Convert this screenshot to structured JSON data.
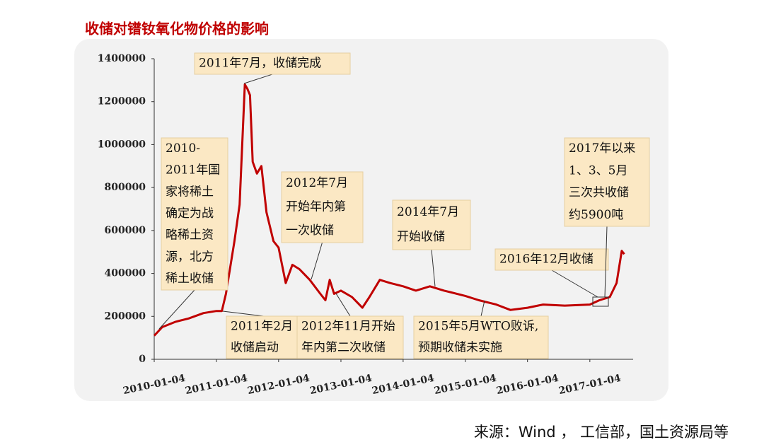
{
  "chart_data": {
    "type": "line",
    "title": "收储对镨钕氧化物价格的影响",
    "source": "来源：Wind ， 工信部，国土资源局等",
    "xlim": [
      "2010-01-04",
      "2017-09-15"
    ],
    "xticks": [
      "2010-01-04",
      "2011-01-04",
      "2012-01-04",
      "2013-01-04",
      "2014-01-04",
      "2015-01-04",
      "2016-01-04",
      "2017-01-04"
    ],
    "ylim": [
      0,
      1400000
    ],
    "yticks": [
      0,
      200000,
      400000,
      600000,
      800000,
      1000000,
      1200000,
      1400000
    ],
    "series": [
      {
        "color": "#c00000",
        "x": [
          "2010-01-04",
          "2010-02-20",
          "2010-05-10",
          "2010-07-25",
          "2010-10-20",
          "2011-01-04",
          "2011-02-05",
          "2011-03-01",
          "2011-04-20",
          "2011-05-20",
          "2011-06-20",
          "2011-07-05",
          "2011-07-20",
          "2011-08-05",
          "2011-08-30",
          "2011-09-25",
          "2011-10-25",
          "2011-12-05",
          "2012-01-04",
          "2012-02-15",
          "2012-03-25",
          "2012-05-05",
          "2012-07-05",
          "2012-09-05",
          "2012-10-05",
          "2012-10-30",
          "2012-11-25",
          "2013-01-04",
          "2013-03-10",
          "2013-05-10",
          "2013-06-20",
          "2013-08-20",
          "2013-10-20",
          "2014-01-04",
          "2014-03-20",
          "2014-06-10",
          "2014-09-01",
          "2015-01-04",
          "2015-03-25",
          "2015-07-05",
          "2015-09-25",
          "2016-01-04",
          "2016-04-05",
          "2016-08-10",
          "2017-01-04",
          "2017-03-01",
          "2017-05-01",
          "2017-06-10",
          "2017-07-10",
          "2017-07-25"
        ],
        "values": [
          110000,
          150000,
          175000,
          190000,
          215000,
          225000,
          225000,
          305000,
          550000,
          720000,
          1280000,
          1260000,
          1230000,
          920000,
          865000,
          900000,
          685000,
          550000,
          520000,
          355000,
          440000,
          420000,
          370000,
          305000,
          275000,
          370000,
          305000,
          320000,
          290000,
          240000,
          290000,
          370000,
          355000,
          340000,
          320000,
          340000,
          320000,
          295000,
          275000,
          255000,
          230000,
          240000,
          255000,
          250000,
          255000,
          275000,
          290000,
          355000,
          505000,
          490000
        ]
      }
    ],
    "annotations": [
      {
        "lines": [
          "2011年7月，收储完成"
        ]
      },
      {
        "lines": [
          "2010-",
          "2011年国",
          "家将稀土",
          "确定为战",
          "略稀土资",
          "源，北方",
          "稀土收储"
        ]
      },
      {
        "lines": [
          "2011年2月",
          "收储启动"
        ]
      },
      {
        "lines": [
          "2012年7月",
          "开始年内第",
          "一次收储"
        ]
      },
      {
        "lines": [
          "2012年11月开始",
          "年内第二次收储"
        ]
      },
      {
        "lines": [
          "2014年7月",
          "开始收储"
        ]
      },
      {
        "lines": [
          "2016年12月收储"
        ]
      },
      {
        "lines": [
          "2015年5月WTO败诉,",
          "预期收储未实施"
        ]
      },
      {
        "lines": [
          "2017年以来",
          "1、3、5月",
          "三次共收储",
          "约5900吨"
        ]
      }
    ]
  }
}
